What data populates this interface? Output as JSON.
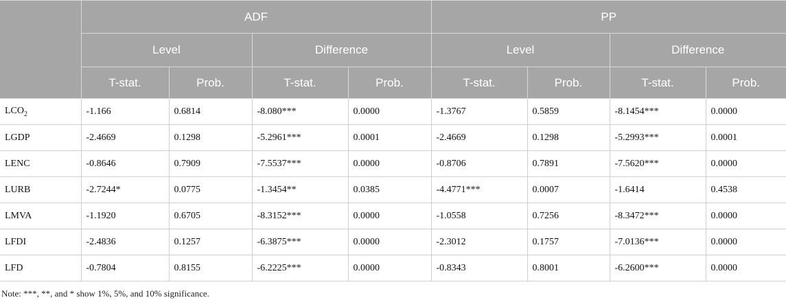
{
  "table": {
    "groups": [
      "ADF",
      "PP"
    ],
    "subgroups": [
      "Level",
      "Difference",
      "Level",
      "Difference"
    ],
    "columns": [
      "T-stat.",
      "Prob.",
      "T-stat.",
      "Prob.",
      "T-stat.",
      "Prob.",
      "T-stat.",
      "Prob."
    ],
    "rows": [
      {
        "label": {
          "main": "LCO",
          "sub": "2"
        },
        "cells": [
          "-1.166",
          "0.6814",
          "-8.080***",
          "0.0000",
          "-1.3767",
          "0.5859",
          "-8.1454***",
          "0.0000"
        ]
      },
      {
        "label": "LGDP",
        "cells": [
          "-2.4669",
          "0.1298",
          "-5.2961***",
          "0.0001",
          "-2.4669",
          "0.1298",
          "-5.2993***",
          "0.0001"
        ]
      },
      {
        "label": "LENC",
        "cells": [
          "-0.8646",
          "0.7909",
          "-7.5537***",
          "0.0000",
          "-0.8706",
          "0.7891",
          "-7.5620***",
          "0.0000"
        ]
      },
      {
        "label": "LURB",
        "cells": [
          "-2.7244*",
          "0.0775",
          "-1.3454**",
          "0.0385",
          "-4.4771***",
          "0.0007",
          "-1.6414",
          "0.4538"
        ]
      },
      {
        "label": "LMVA",
        "cells": [
          "-1.1920",
          "0.6705",
          "-8.3152***",
          "0.0000",
          "-1.0558",
          "0.7256",
          "-8.3472***",
          "0.0000"
        ]
      },
      {
        "label": "LFDI",
        "cells": [
          "-2.4836",
          "0.1257",
          "-6.3875***",
          "0.0000",
          "-2.3012",
          "0.1757",
          "-7.0136***",
          "0.0000"
        ]
      },
      {
        "label": "LFD",
        "cells": [
          "-0.7804",
          "0.8155",
          "-6.2225***",
          "0.0000",
          "-0.8343",
          "0.8001",
          "-6.2600***",
          "0.0000"
        ]
      }
    ]
  },
  "note": "Note: ***, **, and * show 1%, 5%, and 10% significance."
}
